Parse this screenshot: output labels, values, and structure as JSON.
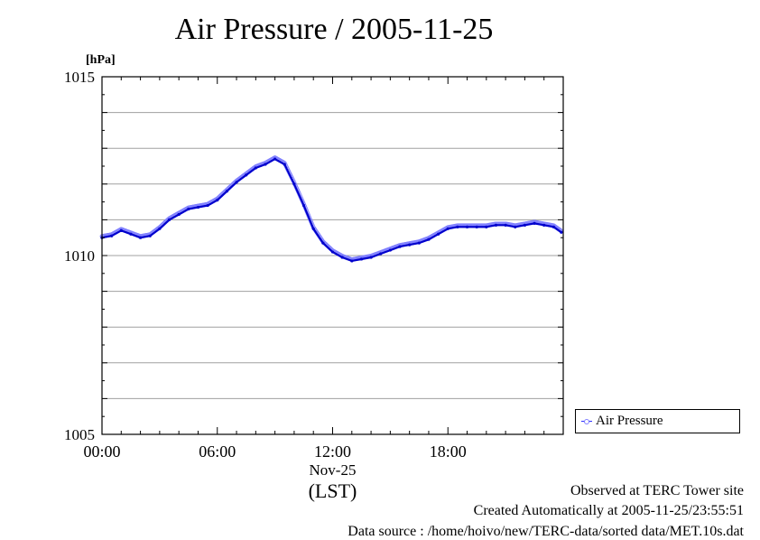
{
  "chart_data": {
    "type": "line",
    "title": "Air Pressure / 2005-11-25",
    "ylabel": "[hPa]",
    "ylim": [
      1005,
      1015
    ],
    "yticks": [
      1005,
      1010,
      1015
    ],
    "xlim": [
      0,
      24
    ],
    "xticks": [
      {
        "value": 0,
        "label": "00:00"
      },
      {
        "value": 6,
        "label": "06:00"
      },
      {
        "value": 12,
        "label": "12:00"
      },
      {
        "value": 18,
        "label": "18:00"
      }
    ],
    "xdate_label": "Nov-25",
    "xunit_label": "(LST)",
    "grid": true,
    "legend_position": "right",
    "series": [
      {
        "name": "Air Pressure",
        "color": "#0000cc",
        "marker_color": "#8080ff",
        "x": [
          0,
          0.5,
          1,
          1.5,
          2,
          2.5,
          3,
          3.5,
          4,
          4.5,
          5,
          5.5,
          6,
          6.5,
          7,
          7.5,
          8,
          8.5,
          9,
          9.5,
          10,
          10.5,
          11,
          11.5,
          12,
          12.5,
          13,
          13.5,
          14,
          14.5,
          15,
          15.5,
          16,
          16.5,
          17,
          17.5,
          18,
          18.5,
          19,
          19.5,
          20,
          20.5,
          21,
          21.5,
          22,
          22.5,
          23,
          23.5,
          23.9
        ],
        "values": [
          1010.5,
          1010.55,
          1010.7,
          1010.6,
          1010.5,
          1010.55,
          1010.75,
          1011.0,
          1011.15,
          1011.3,
          1011.35,
          1011.4,
          1011.55,
          1011.8,
          1012.05,
          1012.25,
          1012.45,
          1012.55,
          1012.7,
          1012.55,
          1012.0,
          1011.4,
          1010.75,
          1010.35,
          1010.1,
          1009.95,
          1009.85,
          1009.9,
          1009.95,
          1010.05,
          1010.15,
          1010.25,
          1010.3,
          1010.35,
          1010.45,
          1010.6,
          1010.75,
          1010.8,
          1010.8,
          1010.8,
          1010.8,
          1010.85,
          1010.85,
          1010.8,
          1010.85,
          1010.9,
          1010.85,
          1010.8,
          1010.65
        ]
      }
    ]
  },
  "legend": {
    "label": "Air Pressure"
  },
  "footer": {
    "observed": "Observed at TERC Tower site",
    "created": "Created Automatically at 2005-11-25/23:55:51",
    "source": "Data source : /home/hoivo/new/TERC-data/sorted  data/MET.10s.dat"
  }
}
